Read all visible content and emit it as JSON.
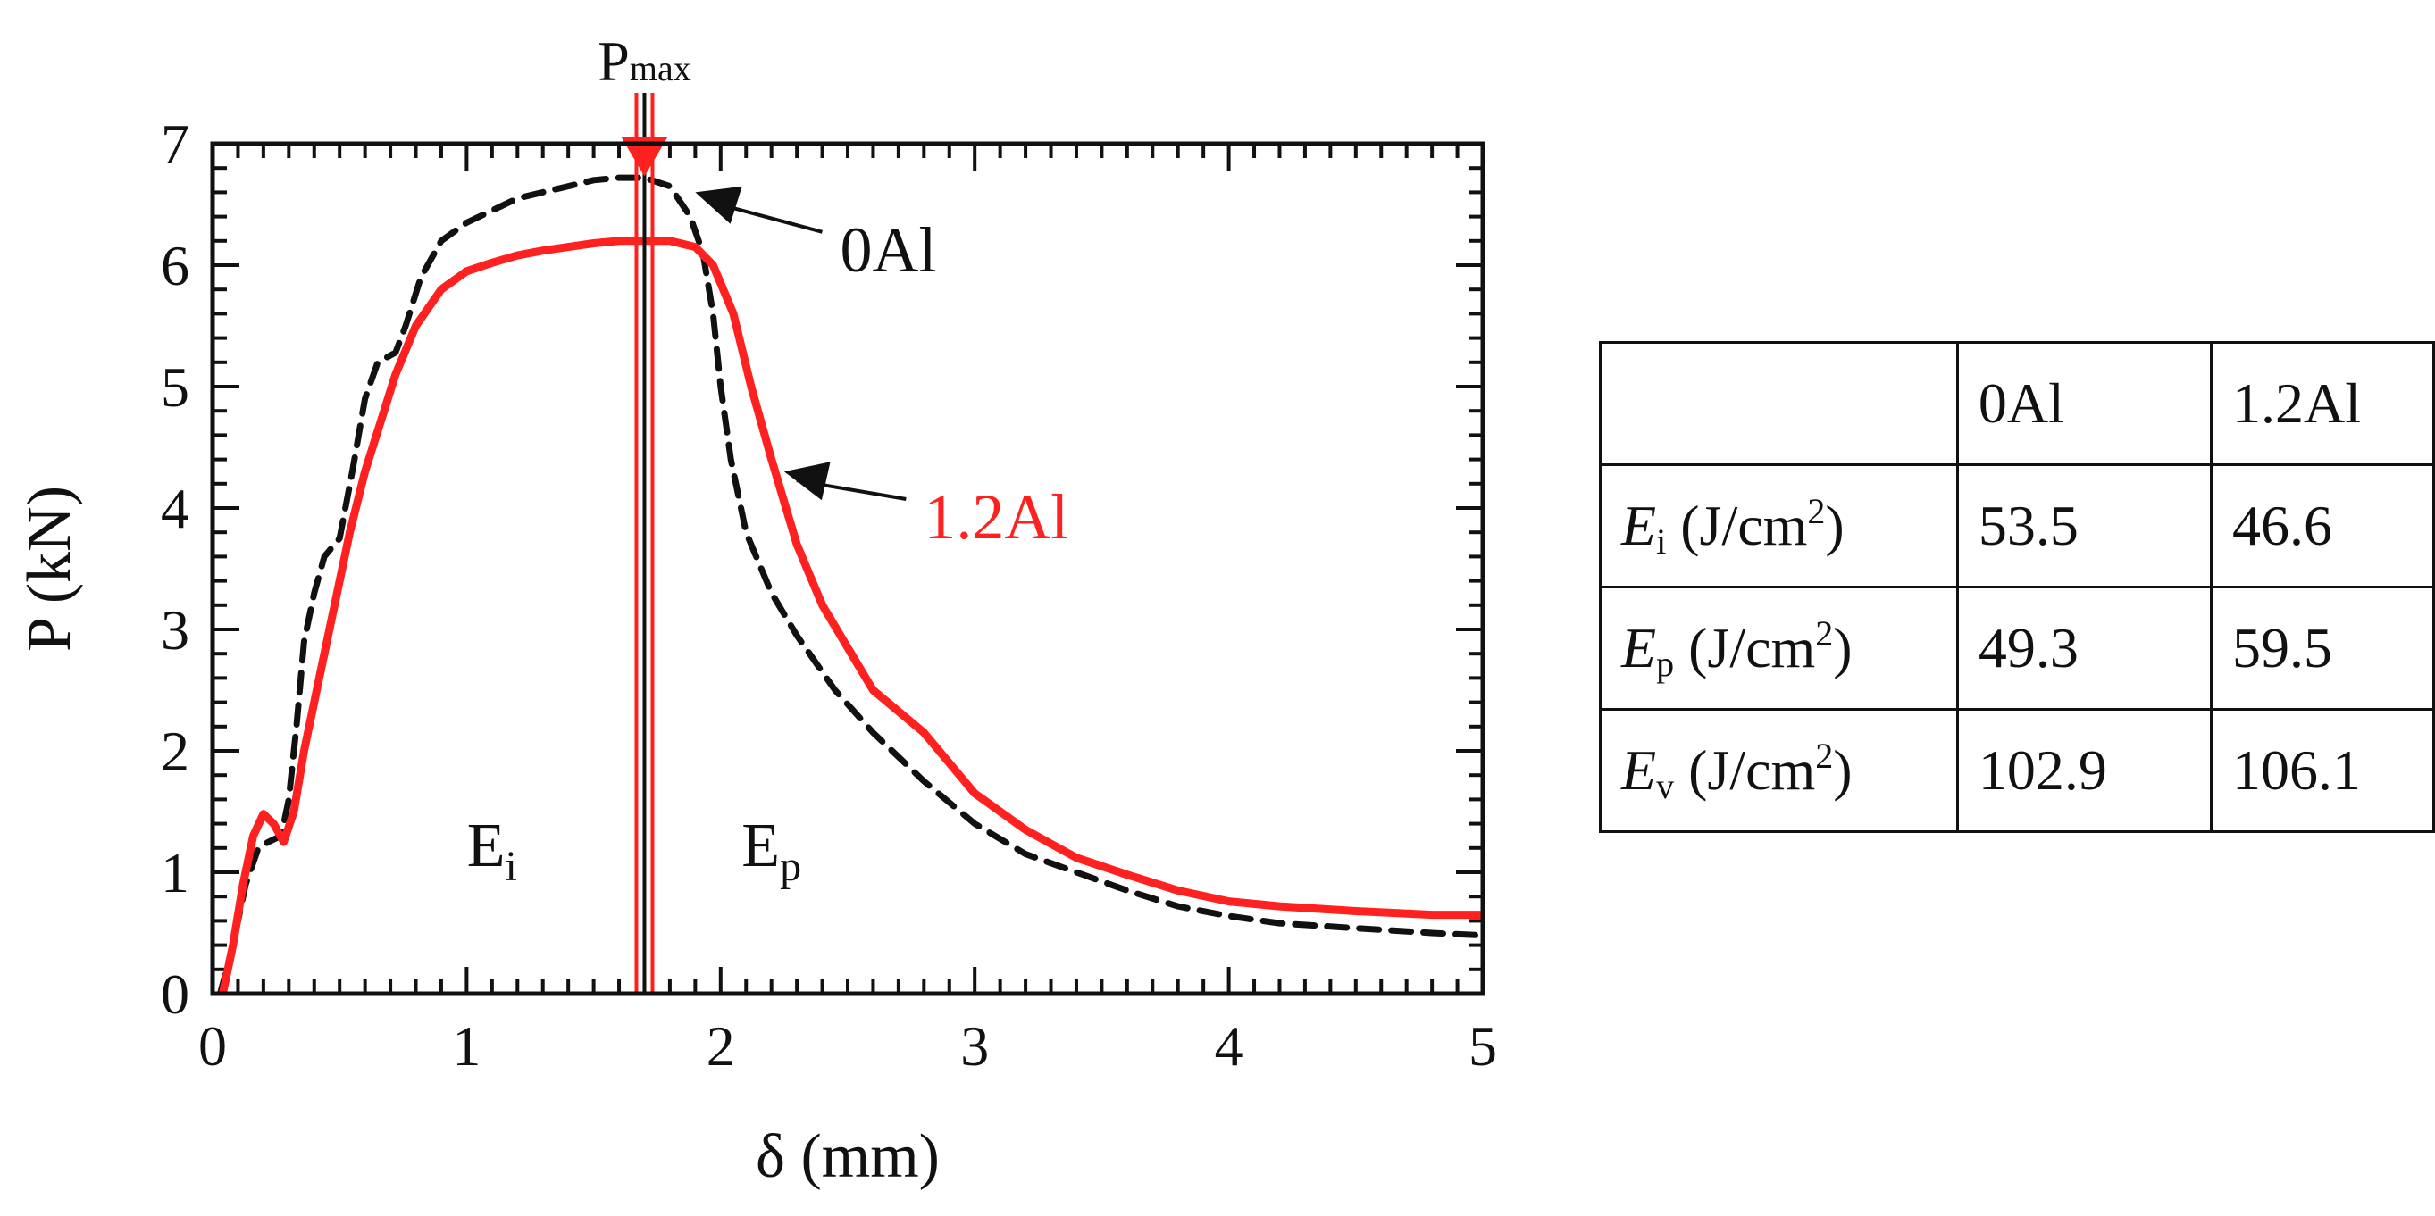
{
  "chart_data": {
    "type": "line",
    "xlabel": "δ (mm)",
    "ylabel": "P (kN)",
    "xlim": [
      0,
      5
    ],
    "ylim": [
      0,
      7
    ],
    "x_ticks": [
      "0",
      "1",
      "2",
      "3",
      "4",
      "5"
    ],
    "y_ticks": [
      "0",
      "1",
      "2",
      "3",
      "4",
      "5",
      "6",
      "7"
    ],
    "grid": false,
    "series": [
      {
        "name": "0Al",
        "style": "dashed",
        "color": "#111111",
        "points": [
          [
            0.03,
            0
          ],
          [
            0.08,
            0.4
          ],
          [
            0.13,
            0.9
          ],
          [
            0.18,
            1.2
          ],
          [
            0.22,
            1.25
          ],
          [
            0.27,
            1.3
          ],
          [
            0.3,
            1.6
          ],
          [
            0.33,
            2.2
          ],
          [
            0.36,
            2.9
          ],
          [
            0.4,
            3.3
          ],
          [
            0.44,
            3.6
          ],
          [
            0.5,
            3.75
          ],
          [
            0.55,
            4.3
          ],
          [
            0.6,
            4.9
          ],
          [
            0.65,
            5.2
          ],
          [
            0.72,
            5.28
          ],
          [
            0.76,
            5.5
          ],
          [
            0.82,
            5.9
          ],
          [
            0.9,
            6.2
          ],
          [
            1.0,
            6.35
          ],
          [
            1.1,
            6.45
          ],
          [
            1.2,
            6.55
          ],
          [
            1.3,
            6.6
          ],
          [
            1.4,
            6.65
          ],
          [
            1.5,
            6.7
          ],
          [
            1.6,
            6.72
          ],
          [
            1.7,
            6.72
          ],
          [
            1.8,
            6.65
          ],
          [
            1.88,
            6.4
          ],
          [
            1.93,
            6.1
          ],
          [
            1.97,
            5.6
          ],
          [
            2.0,
            5.0
          ],
          [
            2.04,
            4.4
          ],
          [
            2.1,
            3.8
          ],
          [
            2.2,
            3.3
          ],
          [
            2.3,
            2.95
          ],
          [
            2.45,
            2.5
          ],
          [
            2.6,
            2.15
          ],
          [
            2.8,
            1.75
          ],
          [
            3.0,
            1.4
          ],
          [
            3.2,
            1.15
          ],
          [
            3.4,
            1.0
          ],
          [
            3.6,
            0.85
          ],
          [
            3.8,
            0.72
          ],
          [
            4.0,
            0.64
          ],
          [
            4.2,
            0.58
          ],
          [
            4.5,
            0.54
          ],
          [
            4.8,
            0.5
          ],
          [
            5.0,
            0.48
          ]
        ]
      },
      {
        "name": "1.2Al",
        "style": "solid",
        "color": "#ff2020",
        "points": [
          [
            0.04,
            0
          ],
          [
            0.08,
            0.4
          ],
          [
            0.12,
            0.9
          ],
          [
            0.16,
            1.3
          ],
          [
            0.2,
            1.48
          ],
          [
            0.24,
            1.4
          ],
          [
            0.28,
            1.25
          ],
          [
            0.32,
            1.5
          ],
          [
            0.36,
            2.0
          ],
          [
            0.42,
            2.6
          ],
          [
            0.48,
            3.2
          ],
          [
            0.54,
            3.8
          ],
          [
            0.6,
            4.3
          ],
          [
            0.66,
            4.7
          ],
          [
            0.72,
            5.1
          ],
          [
            0.8,
            5.5
          ],
          [
            0.9,
            5.8
          ],
          [
            1.0,
            5.95
          ],
          [
            1.1,
            6.02
          ],
          [
            1.2,
            6.08
          ],
          [
            1.3,
            6.12
          ],
          [
            1.4,
            6.15
          ],
          [
            1.5,
            6.18
          ],
          [
            1.6,
            6.2
          ],
          [
            1.7,
            6.2
          ],
          [
            1.8,
            6.2
          ],
          [
            1.9,
            6.15
          ],
          [
            1.97,
            6.0
          ],
          [
            2.05,
            5.6
          ],
          [
            2.12,
            5.0
          ],
          [
            2.2,
            4.4
          ],
          [
            2.3,
            3.7
          ],
          [
            2.4,
            3.2
          ],
          [
            2.5,
            2.85
          ],
          [
            2.6,
            2.5
          ],
          [
            2.8,
            2.15
          ],
          [
            3.0,
            1.65
          ],
          [
            3.2,
            1.35
          ],
          [
            3.4,
            1.12
          ],
          [
            3.6,
            0.98
          ],
          [
            3.8,
            0.85
          ],
          [
            4.0,
            0.76
          ],
          [
            4.2,
            0.72
          ],
          [
            4.5,
            0.68
          ],
          [
            4.8,
            0.65
          ],
          [
            5.0,
            0.65
          ]
        ]
      }
    ],
    "annotations": {
      "pmax": {
        "text": "P",
        "sub": "max",
        "x": 1.7
      },
      "region_ei": {
        "text": "E",
        "sub": "i",
        "x": 1.1,
        "y": 1.05
      },
      "region_ep": {
        "text": "E",
        "sub": "p",
        "x": 2.2,
        "y": 1.05
      },
      "label_0al": {
        "text": "0Al",
        "x": 2.47,
        "y": 5.95,
        "arrow_to": [
          1.9,
          6.6
        ]
      },
      "label_12al": {
        "text": "1.2Al",
        "x": 2.8,
        "y": 3.75,
        "arrow_to": [
          2.25,
          4.3
        ]
      }
    }
  },
  "table": {
    "header": [
      "",
      "0Al",
      "1.2Al"
    ],
    "rows": [
      {
        "symbol": "E",
        "sub": "i",
        "unit_pre": " (J/cm",
        "sup": "2",
        "unit_post": ")",
        "values": [
          "53.5",
          "46.6"
        ]
      },
      {
        "symbol": "E",
        "sub": "p",
        "unit_pre": " (J/cm",
        "sup": "2",
        "unit_post": ")",
        "values": [
          "49.3",
          "59.5"
        ]
      },
      {
        "symbol": "E",
        "sub": "v",
        "unit_pre": " (J/cm",
        "sup": "2",
        "unit_post": ")",
        "values": [
          "102.9",
          "106.1"
        ]
      }
    ]
  }
}
